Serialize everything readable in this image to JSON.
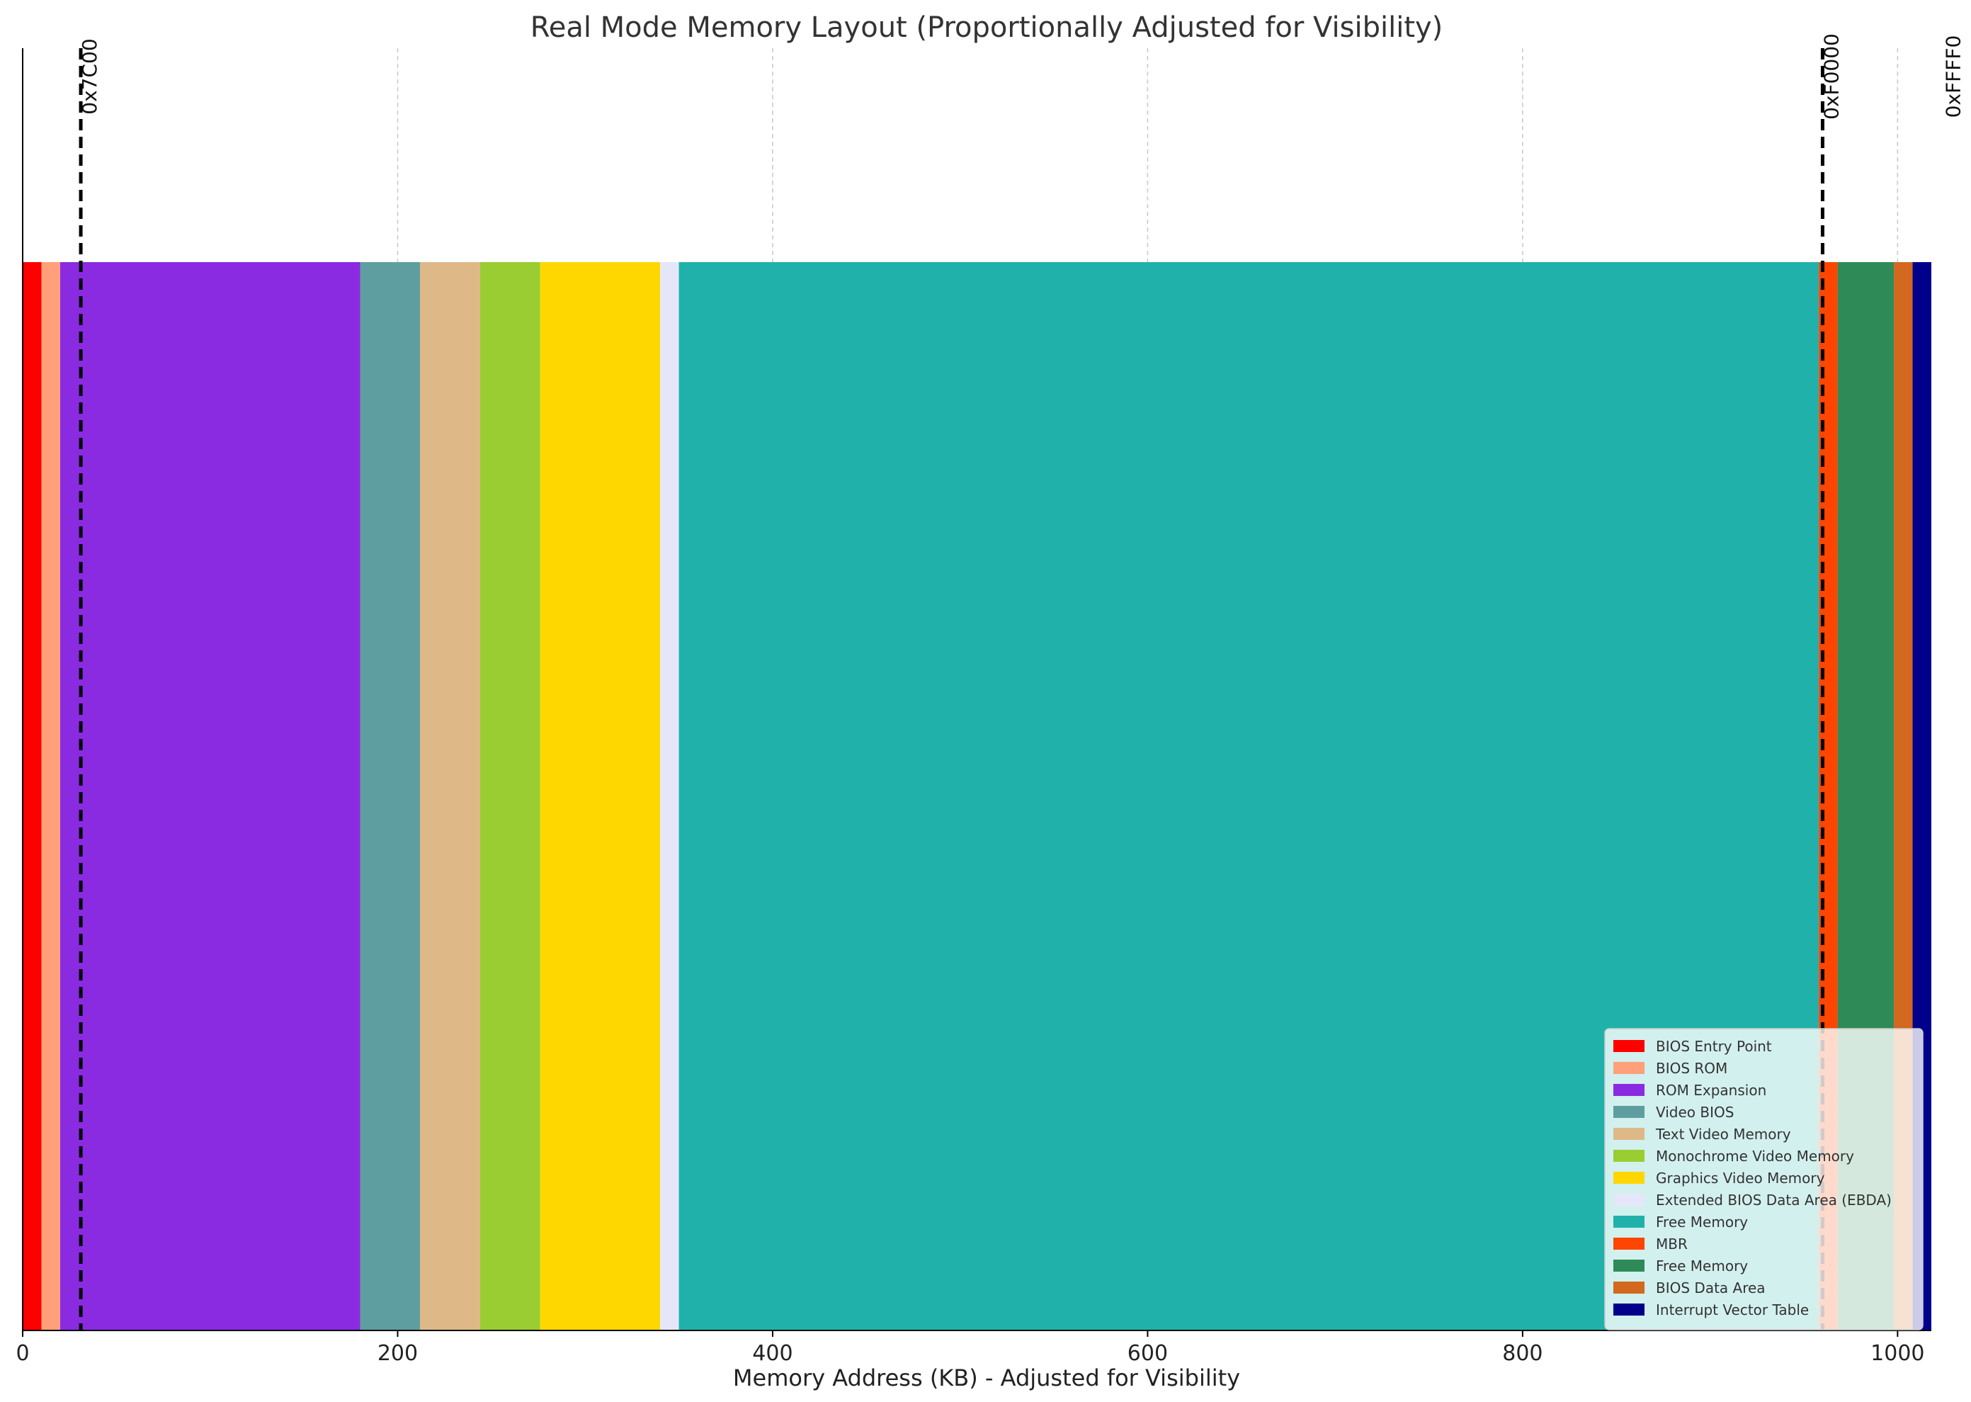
{
  "chart_data": {
    "type": "bar",
    "orientation": "horizontal-stacked",
    "title": "Real Mode Memory Layout (Proportionally Adjusted for Visibility)",
    "xlabel": "Memory Address (KB) - Adjusted for Visibility",
    "ylabel": "",
    "xlim": [
      0,
      1018
    ],
    "xticks": [
      0,
      200,
      400,
      600,
      800,
      1000
    ],
    "grid": "x-dashed",
    "legend_position": "lower-right",
    "segments": [
      {
        "name": "BIOS Entry Point",
        "start": 0,
        "end": 10,
        "color": "#ff0000"
      },
      {
        "name": "BIOS ROM",
        "start": 10,
        "end": 20,
        "color": "#ffa07a"
      },
      {
        "name": "ROM Expansion",
        "start": 20,
        "end": 180,
        "color": "#8a2be2"
      },
      {
        "name": "Video BIOS",
        "start": 180,
        "end": 212,
        "color": "#5f9ea0"
      },
      {
        "name": "Text Video Memory",
        "start": 212,
        "end": 244,
        "color": "#deb887"
      },
      {
        "name": "Monochrome Video Memory",
        "start": 244,
        "end": 276,
        "color": "#9acd32"
      },
      {
        "name": "Graphics Video Memory",
        "start": 276,
        "end": 340,
        "color": "#ffd700"
      },
      {
        "name": "Extended BIOS Data Area (EBDA)",
        "start": 340,
        "end": 350,
        "color": "#e6e6fa"
      },
      {
        "name": "Free Memory",
        "start": 350,
        "end": 958,
        "color": "#20b2aa"
      },
      {
        "name": "MBR",
        "start": 958,
        "end": 968,
        "color": "#ff4500"
      },
      {
        "name": "Free Memory",
        "start": 968,
        "end": 998,
        "color": "#2e8b57"
      },
      {
        "name": "BIOS Data Area",
        "start": 998,
        "end": 1008,
        "color": "#d2691e"
      },
      {
        "name": "Interrupt Vector Table",
        "start": 1008,
        "end": 1018,
        "color": "#00008b"
      }
    ],
    "markers": [
      {
        "label": "0x7C00",
        "x": 31,
        "line": true
      },
      {
        "label": "0xF0000",
        "x": 960,
        "line": true
      },
      {
        "label": "0xFFFF0",
        "x": 1025,
        "line": false
      }
    ]
  }
}
